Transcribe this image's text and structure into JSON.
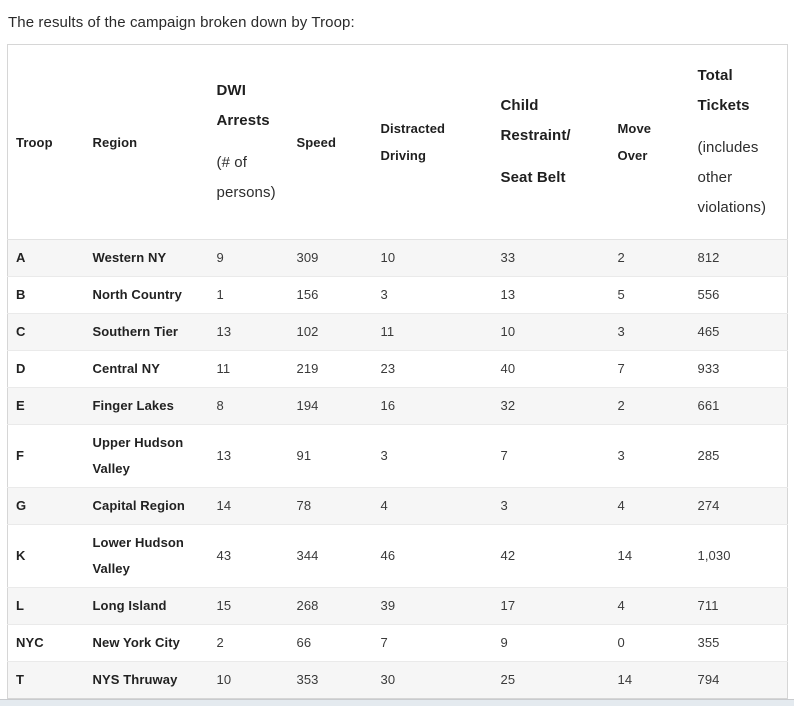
{
  "page": {
    "title": "The results of the campaign broken down by Troop:"
  },
  "table": {
    "header": {
      "troop": "Troop",
      "region": "Region",
      "dwi_title": "DWI\nArrests",
      "dwi_sub": "(# of\npersons)",
      "speed": "Speed",
      "distracted": "Distracted\nDriving",
      "child_title": "Child\nRestraint/",
      "child_sub": "Seat Belt",
      "move": "Move\nOver",
      "total_title": "Total\nTickets",
      "total_sub": "(includes\nother\nviolations)"
    },
    "column_order": [
      "troop",
      "region",
      "dwi",
      "speed",
      "distracted",
      "child",
      "move",
      "total"
    ],
    "rows": [
      {
        "troop": "A",
        "region": "Western NY",
        "dwi": "9",
        "speed": "309",
        "distracted": "10",
        "child": "33",
        "move": "2",
        "total": "812"
      },
      {
        "troop": "B",
        "region": "North Country",
        "dwi": "1",
        "speed": "156",
        "distracted": "3",
        "child": "13",
        "move": "5",
        "total": "556"
      },
      {
        "troop": "C",
        "region": "Southern Tier",
        "dwi": "13",
        "speed": "102",
        "distracted": "11",
        "child": "10",
        "move": "3",
        "total": "465"
      },
      {
        "troop": "D",
        "region": "Central NY",
        "dwi": "11",
        "speed": "219",
        "distracted": "23",
        "child": "40",
        "move": "7",
        "total": "933"
      },
      {
        "troop": "E",
        "region": "Finger Lakes",
        "dwi": "8",
        "speed": "194",
        "distracted": "16",
        "child": "32",
        "move": "2",
        "total": "661"
      },
      {
        "troop": "F",
        "region": "Upper Hudson\nValley",
        "dwi": "13",
        "speed": "91",
        "distracted": "3",
        "child": "7",
        "move": "3",
        "total": "285"
      },
      {
        "troop": "G",
        "region": "Capital Region",
        "dwi": "14",
        "speed": "78",
        "distracted": "4",
        "child": "3",
        "move": "4",
        "total": "274"
      },
      {
        "troop": "K",
        "region": "Lower Hudson\nValley",
        "dwi": "43",
        "speed": "344",
        "distracted": "46",
        "child": "42",
        "move": "14",
        "total": "1,030"
      },
      {
        "troop": "L",
        "region": "Long Island",
        "dwi": "15",
        "speed": "268",
        "distracted": "39",
        "child": "17",
        "move": "4",
        "total": "711"
      },
      {
        "troop": "NYC",
        "region": "New York City",
        "dwi": "2",
        "speed": "66",
        "distracted": "7",
        "child": "9",
        "move": "0",
        "total": "355"
      },
      {
        "troop": "T",
        "region": "NYS Thruway",
        "dwi": "10",
        "speed": "353",
        "distracted": "30",
        "child": "25",
        "move": "14",
        "total": "794"
      }
    ]
  },
  "colors": {
    "stripe": "#f6f6f6",
    "table_border": "#d6d6d6",
    "row_divider": "#eaeaea",
    "footer_band": "#e4eaef",
    "footer_band_border": "#c9cbce",
    "text": "#2d2d2d"
  }
}
